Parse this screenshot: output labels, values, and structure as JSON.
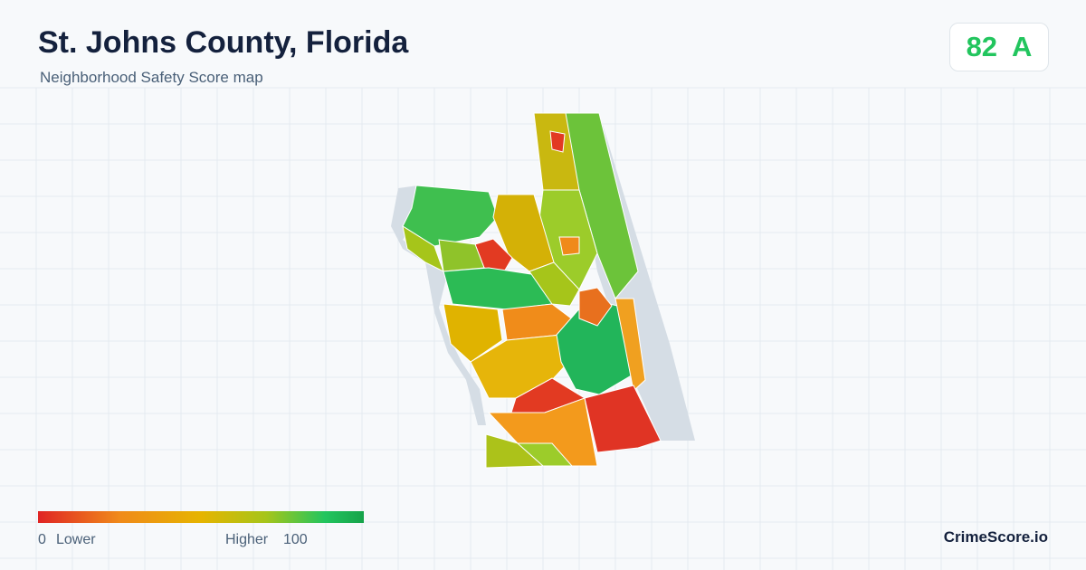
{
  "header": {
    "title": "St. Johns County, Florida",
    "subtitle": "Neighborhood Safety Score map"
  },
  "score": {
    "value": 82,
    "grade": "A"
  },
  "legend": {
    "min": 0,
    "min_label": "Lower",
    "max_label": "Higher",
    "max": 100
  },
  "brand": "CrimeScore.io"
}
